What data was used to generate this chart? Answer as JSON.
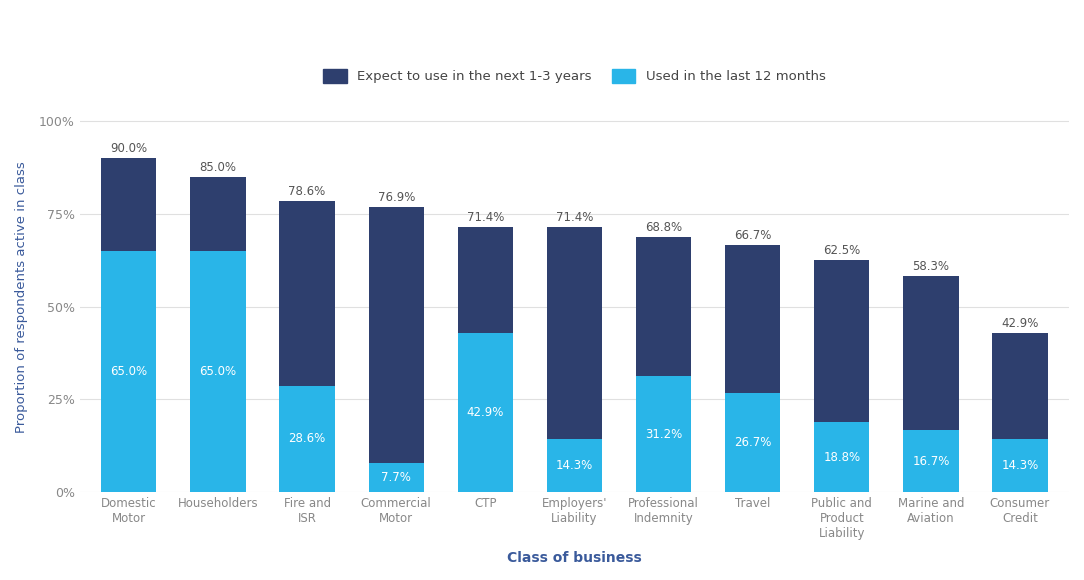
{
  "categories": [
    "Domestic\nMotor",
    "Householders",
    "Fire and\nISR",
    "Commercial\nMotor",
    "CTP",
    "Employers'\nLiability",
    "Professional\nIndemnity",
    "Travel",
    "Public and\nProduct\nLiability",
    "Marine and\nAviation",
    "Consumer\nCredit"
  ],
  "total_values": [
    90.0,
    85.0,
    78.6,
    76.9,
    71.4,
    71.4,
    68.8,
    66.7,
    62.5,
    58.3,
    42.9
  ],
  "used_values": [
    65.0,
    65.0,
    28.6,
    7.7,
    42.9,
    14.3,
    31.2,
    26.7,
    18.8,
    16.7,
    14.3
  ],
  "dark_blue": "#2e3f6e",
  "light_blue": "#29b5e8",
  "background_color": "#ffffff",
  "ylabel": "Proportion of respondents active in class",
  "xlabel": "Class of business",
  "legend_expect": "Expect to use in the next 1-3 years",
  "legend_used": "Used in the last 12 months",
  "ylim": [
    0,
    105
  ],
  "yticks": [
    0,
    25,
    50,
    75,
    100
  ],
  "ytick_labels": [
    "0%",
    "25%",
    "50%",
    "75%",
    "100%"
  ],
  "label_color_above": "#555555",
  "label_color_inside": "#ffffff",
  "ylabel_color": "#3a5a9b",
  "xlabel_color": "#3a5a9b",
  "tick_label_color": "#888888",
  "grid_color": "#e0e0e0"
}
